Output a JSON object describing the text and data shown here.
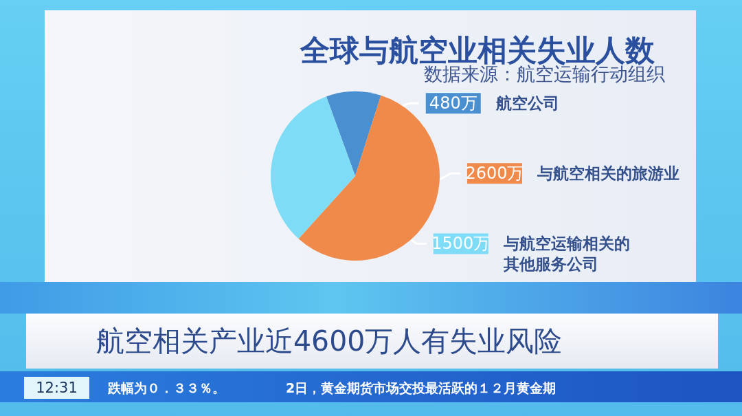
{
  "chart_data": {
    "type": "pie",
    "title": "全球与航空业相关失业人数",
    "subtitle": "数据来源：航空运输行动组织",
    "categories": [
      "航空公司",
      "与航空相关的旅游业",
      "与航空运输相关的其他服务公司"
    ],
    "values": [
      480,
      2600,
      1500
    ],
    "colors": [
      "#4a8fd0",
      "#f08a4b",
      "#7fdcf7"
    ],
    "value_labels": [
      "480万",
      "2600万",
      "1500万"
    ],
    "legend": "right",
    "annotations": [
      "航空相关产业近4600万人有失业风险",
      "12:31",
      "跌幅为０．３３％。",
      "2日，黄金期货市场交投最活跃的１２月黄金期"
    ]
  }
}
